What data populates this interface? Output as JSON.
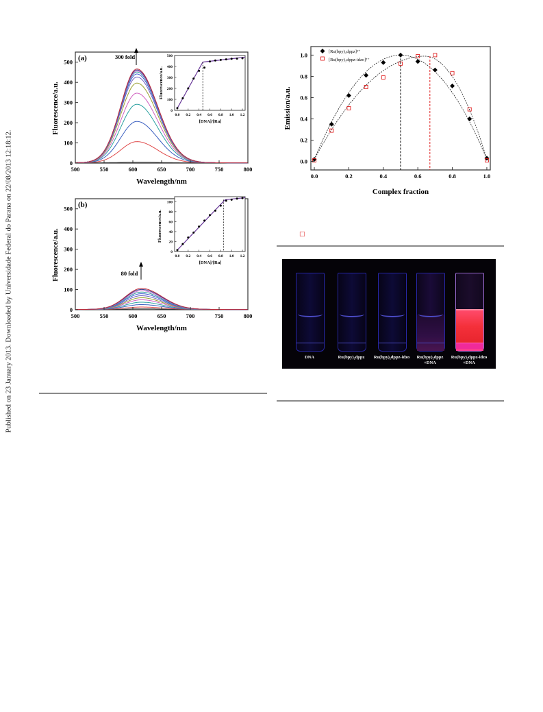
{
  "side_note": "Published on 23 January 2013. Downloaded by Universidade Federal do Parana on 22/08/2013 12:18:12.",
  "colors": {
    "frame": "#333333",
    "text": "#000000",
    "rule": "#8a8a8a",
    "photo_bg": "#050308",
    "glow_red": "#f4303a"
  },
  "panel_a": {
    "tag": "(a)",
    "annotation": "300 fold",
    "ylabel": "Fluorescence/a.u.",
    "xlabel": "Wavelength/nm",
    "y_ticks": [
      "0",
      "100",
      "200",
      "300",
      "400",
      "500"
    ],
    "x_ticks": [
      "500",
      "550",
      "600",
      "650",
      "700",
      "750",
      "800"
    ],
    "inset": {
      "ylabel": "Fluorescence/a.u.",
      "xlabel": "[DNA]/[Ru]",
      "y_ticks": [
        "0",
        "100",
        "200",
        "300",
        "400",
        "500"
      ],
      "x_ticks": [
        "0.0",
        "0.2",
        "0.4",
        "0.6",
        "0.8",
        "1.0",
        "1.2"
      ]
    }
  },
  "panel_b": {
    "tag": "(b)",
    "annotation": "80 fold",
    "ylabel": "Fluorescence/a.u.",
    "xlabel": "Wavelength/nm",
    "y_ticks": [
      "0",
      "100",
      "200",
      "300",
      "400",
      "500"
    ],
    "x_ticks": [
      "500",
      "550",
      "600",
      "650",
      "700",
      "750",
      "800"
    ],
    "inset": {
      "ylabel": "Fluorescence/a.u.",
      "xlabel": "[DNA]/[Ru]",
      "y_ticks": [
        "0",
        "20",
        "40",
        "60",
        "80",
        "100"
      ],
      "x_ticks": [
        "0.0",
        "0.2",
        "0.4",
        "0.6",
        "0.8",
        "1.0",
        "1.2"
      ]
    }
  },
  "panel_job": {
    "ylabel": "Emission/a.u.",
    "xlabel": "Complex fraction",
    "y_ticks": [
      "0.0",
      "0.2",
      "0.4",
      "0.6",
      "0.8",
      "1.0"
    ],
    "x_ticks": [
      "0.0",
      "0.2",
      "0.4",
      "0.6",
      "0.8",
      "1.0"
    ],
    "legend": [
      "[Ru(bpy)₂dppz]²⁺",
      "[Ru(bpy)₂dppz-idzo]²⁺"
    ],
    "stray_mark": "□"
  },
  "photo": {
    "labels": [
      [
        "DNA"
      ],
      [
        "Ru(bpy)₂dppz"
      ],
      [
        "Ru(bpy)₂dppz-idzo"
      ],
      [
        "Ru(bpy)₂dppz",
        "+DNA"
      ],
      [
        "Ru(bpy)₂dppz-idzo",
        "+DNA"
      ]
    ]
  },
  "chart_data": [
    {
      "type": "line",
      "title": "(a)",
      "xlabel": "Wavelength/nm",
      "ylabel": "Fluorescence/a.u.",
      "xlim": [
        500,
        800
      ],
      "ylim": [
        0,
        550
      ],
      "grid": false,
      "peak_nm": 607,
      "series": [
        {
          "color": "#3a3a3a",
          "peak": 3
        },
        {
          "color": "#e04a4a",
          "peak": 105
        },
        {
          "color": "#3a5fc0",
          "peak": 205
        },
        {
          "color": "#2aa0a0",
          "peak": 290
        },
        {
          "color": "#d060c0",
          "peak": 345
        },
        {
          "color": "#9aa030",
          "peak": 395
        },
        {
          "color": "#7060c0",
          "peak": 425
        },
        {
          "color": "#4060d0",
          "peak": 440
        },
        {
          "color": "#30a0a0",
          "peak": 450
        },
        {
          "color": "#d070d0",
          "peak": 455
        },
        {
          "color": "#3a3a8a",
          "peak": 460
        },
        {
          "color": "#c03040",
          "peak": 465
        }
      ],
      "annotation": "300 fold",
      "inset": {
        "type": "scatter",
        "xlabel": "[DNA]/[Ru]",
        "ylabel": "Fluorescence/a.u.",
        "xlim": [
          -0.05,
          1.25
        ],
        "ylim": [
          0,
          500
        ],
        "x": [
          0.0,
          0.1,
          0.2,
          0.3,
          0.4,
          0.5,
          0.6,
          0.7,
          0.8,
          0.9,
          1.0,
          1.1,
          1.2
        ],
        "y": [
          20,
          110,
          200,
          290,
          360,
          390,
          445,
          455,
          460,
          465,
          470,
          472,
          475
        ],
        "breakpoint": 0.47,
        "fit": [
          [
            0.0,
            20
          ],
          [
            0.47,
            440
          ],
          [
            1.25,
            485
          ]
        ]
      }
    },
    {
      "type": "line",
      "title": "(b)",
      "xlabel": "Wavelength/nm",
      "ylabel": "Fluorescence/a.u.",
      "xlim": [
        500,
        800
      ],
      "ylim": [
        0,
        550
      ],
      "grid": false,
      "peak_nm": 615,
      "series": [
        {
          "color": "#3a3a3a",
          "peak": 3
        },
        {
          "color": "#e04a4a",
          "peak": 12
        },
        {
          "color": "#3a5fc0",
          "peak": 24
        },
        {
          "color": "#2aa0a0",
          "peak": 36
        },
        {
          "color": "#d060c0",
          "peak": 48
        },
        {
          "color": "#9aa030",
          "peak": 58
        },
        {
          "color": "#7060c0",
          "peak": 68
        },
        {
          "color": "#4060d0",
          "peak": 78
        },
        {
          "color": "#30a0a0",
          "peak": 86
        },
        {
          "color": "#d070d0",
          "peak": 93
        },
        {
          "color": "#3a3a8a",
          "peak": 99
        },
        {
          "color": "#c03040",
          "peak": 104
        }
      ],
      "annotation": "80 fold",
      "inset": {
        "type": "scatter",
        "xlabel": "[DNA]/[Ru]",
        "ylabel": "Fluorescence/a.u.",
        "xlim": [
          -0.05,
          1.25
        ],
        "ylim": [
          0,
          110
        ],
        "x": [
          0.0,
          0.1,
          0.2,
          0.3,
          0.4,
          0.5,
          0.6,
          0.7,
          0.8,
          0.9,
          1.0,
          1.1,
          1.2
        ],
        "y": [
          3,
          15,
          28,
          38,
          50,
          62,
          73,
          82,
          92,
          102,
          104,
          106,
          107
        ],
        "breakpoint": 0.85,
        "fit": [
          [
            0.0,
            3
          ],
          [
            0.88,
            104
          ],
          [
            1.25,
            108
          ]
        ]
      }
    },
    {
      "type": "scatter",
      "xlabel": "Complex fraction",
      "ylabel": "Emission/a.u.",
      "xlim": [
        -0.02,
        1.02
      ],
      "ylim": [
        -0.08,
        1.08
      ],
      "grid": false,
      "legend_position": "top-left",
      "series": [
        {
          "name": "[Ru(bpy)₂dppz]²⁺",
          "marker": "filled-diamond",
          "color": "#000000",
          "x": [
            0.0,
            0.1,
            0.2,
            0.3,
            0.4,
            0.5,
            0.6,
            0.7,
            0.8,
            0.9,
            1.0
          ],
          "y": [
            0.02,
            0.35,
            0.62,
            0.81,
            0.93,
            1.0,
            0.94,
            0.86,
            0.71,
            0.4,
            0.03
          ],
          "vline": 0.5
        },
        {
          "name": "[Ru(bpy)₂dppz-idzo]²⁺",
          "marker": "open-square",
          "color": "#e02020",
          "x": [
            0.0,
            0.1,
            0.2,
            0.3,
            0.4,
            0.5,
            0.6,
            0.7,
            0.8,
            0.9,
            1.0
          ],
          "y": [
            0.01,
            0.29,
            0.5,
            0.7,
            0.79,
            0.92,
            0.99,
            1.0,
            0.83,
            0.49,
            0.01
          ],
          "vline": 0.67
        }
      ]
    }
  ]
}
